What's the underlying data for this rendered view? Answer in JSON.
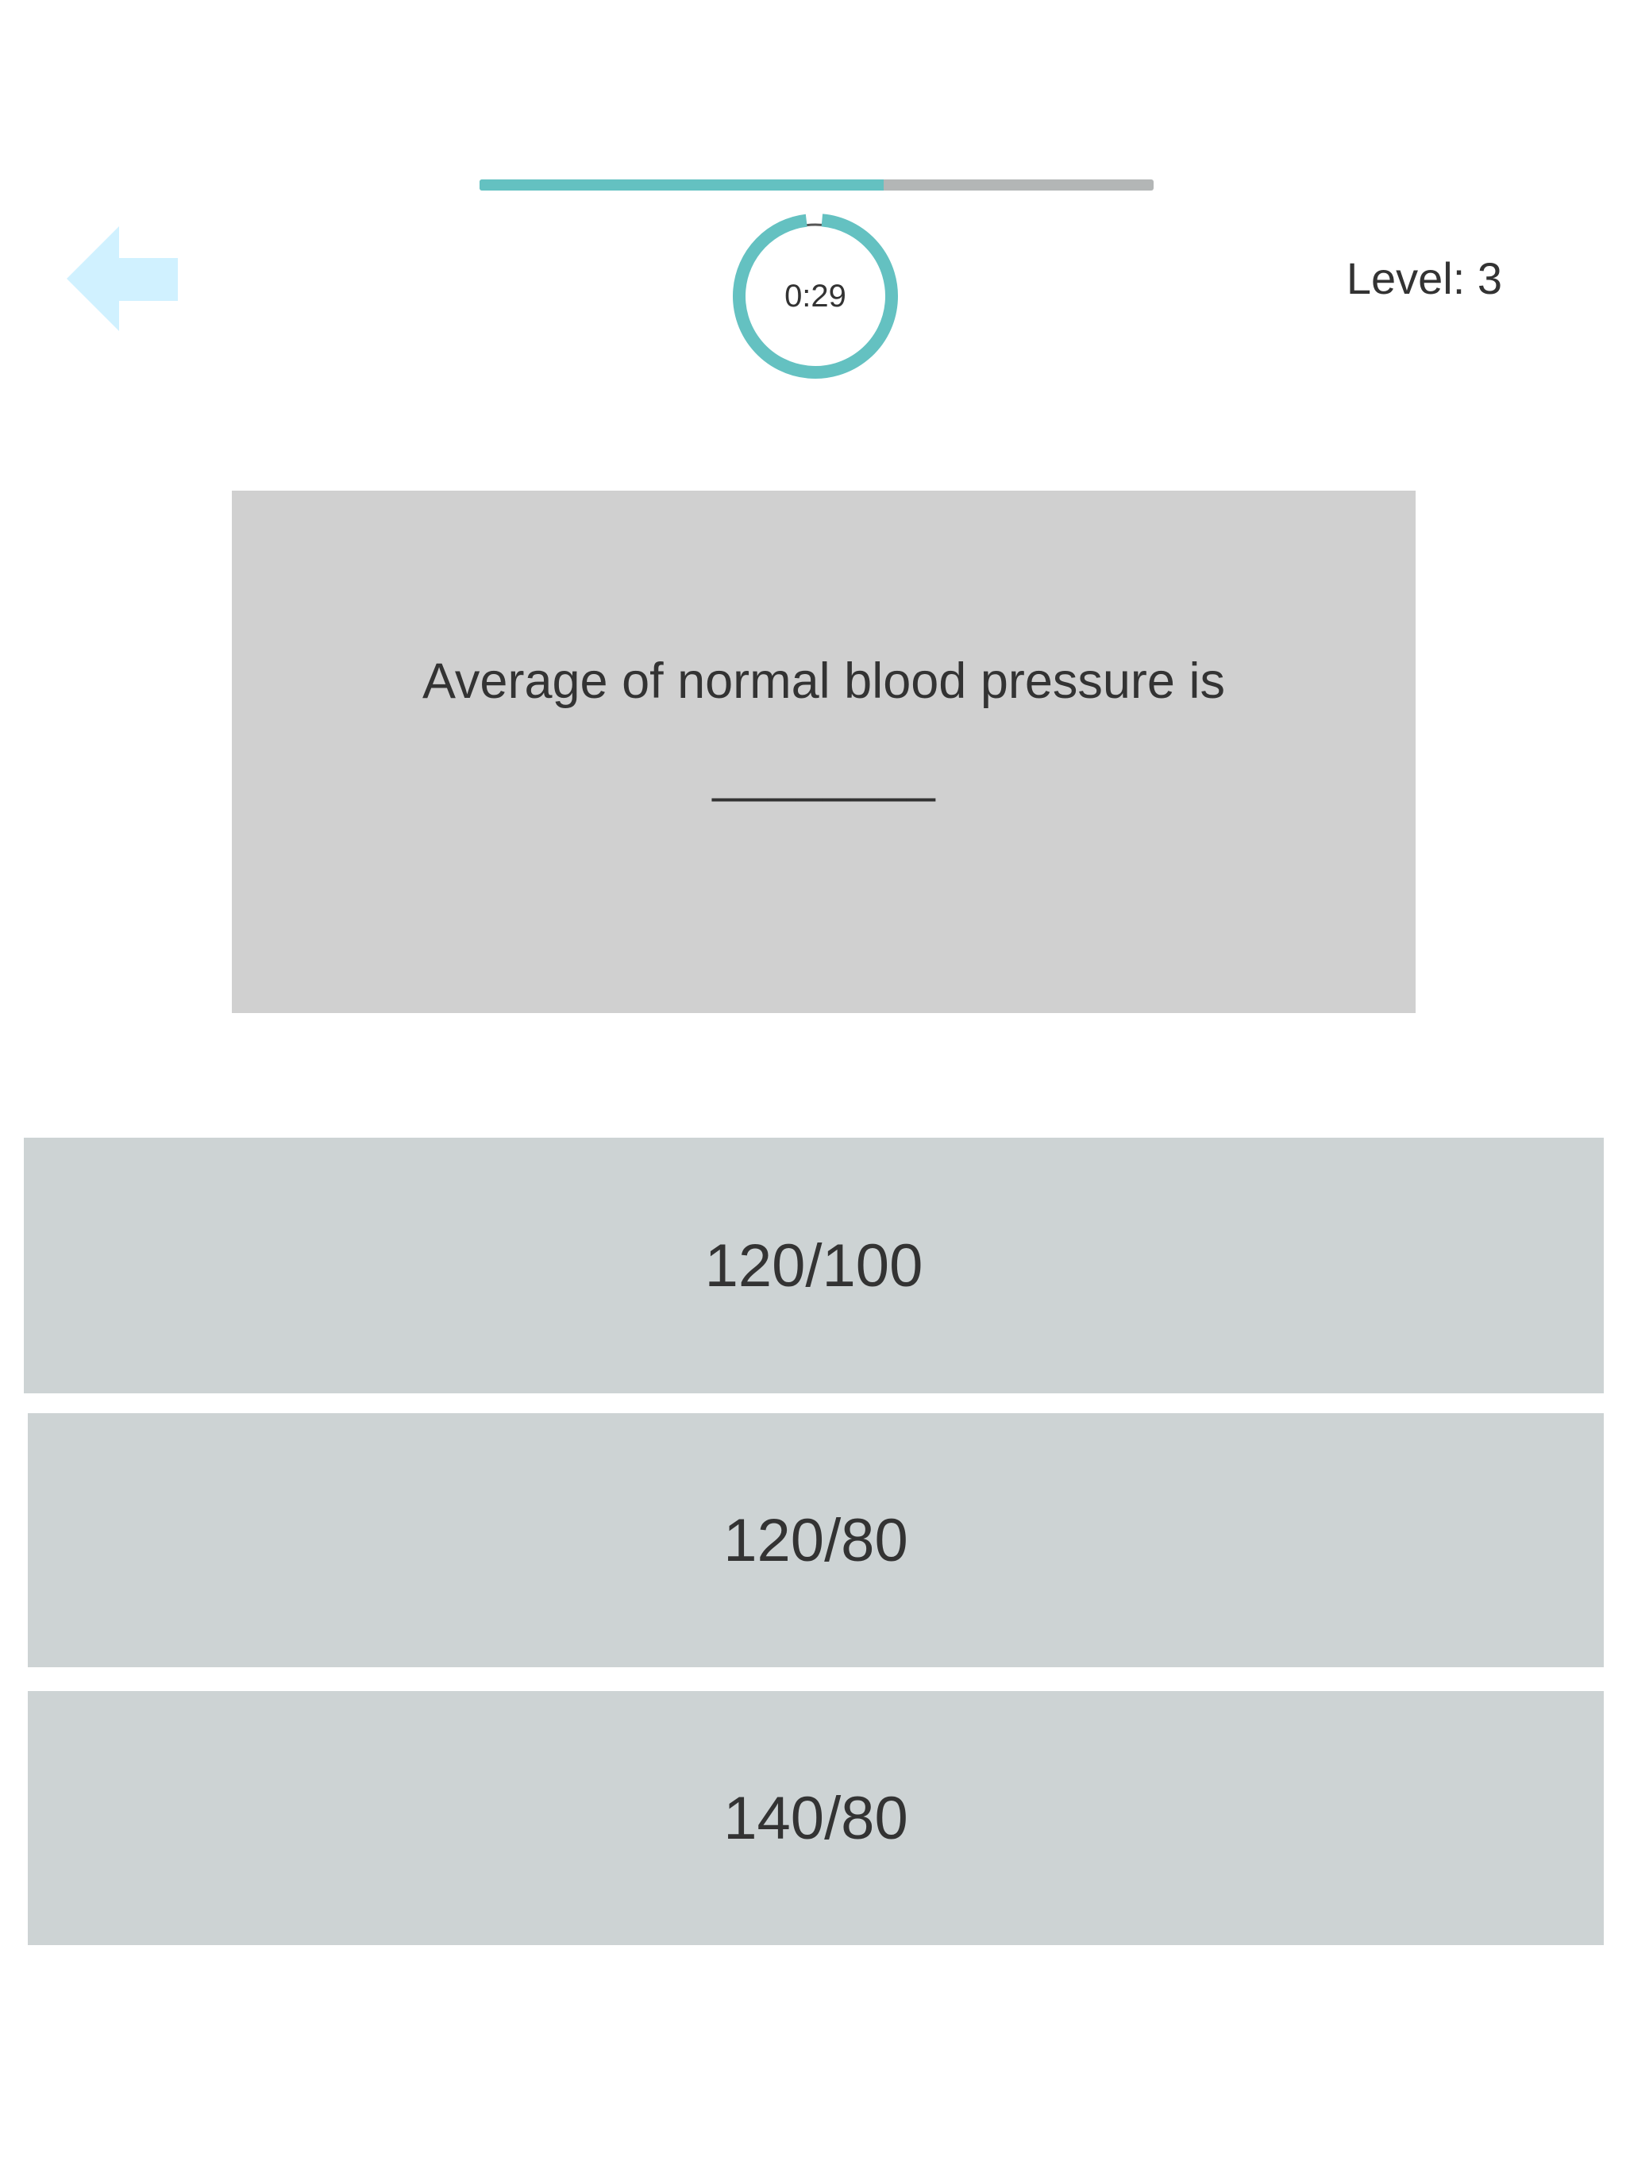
{
  "progress": {
    "fraction": 0.6,
    "fill_color": "#64c1c1",
    "track_color": "#b3b6b6"
  },
  "back_button": {
    "icon": "arrow-left-icon",
    "color": "#d0f1ff"
  },
  "timer": {
    "text": "0:29",
    "remaining_fraction": 0.967,
    "ring_color": "#64c1c1"
  },
  "level": {
    "text": "Level: 3"
  },
  "question": {
    "line1": "Average of normal blood pressure is",
    "line2": "________"
  },
  "answers": [
    {
      "label": "120/100"
    },
    {
      "label": "120/80"
    },
    {
      "label": "140/80"
    }
  ]
}
